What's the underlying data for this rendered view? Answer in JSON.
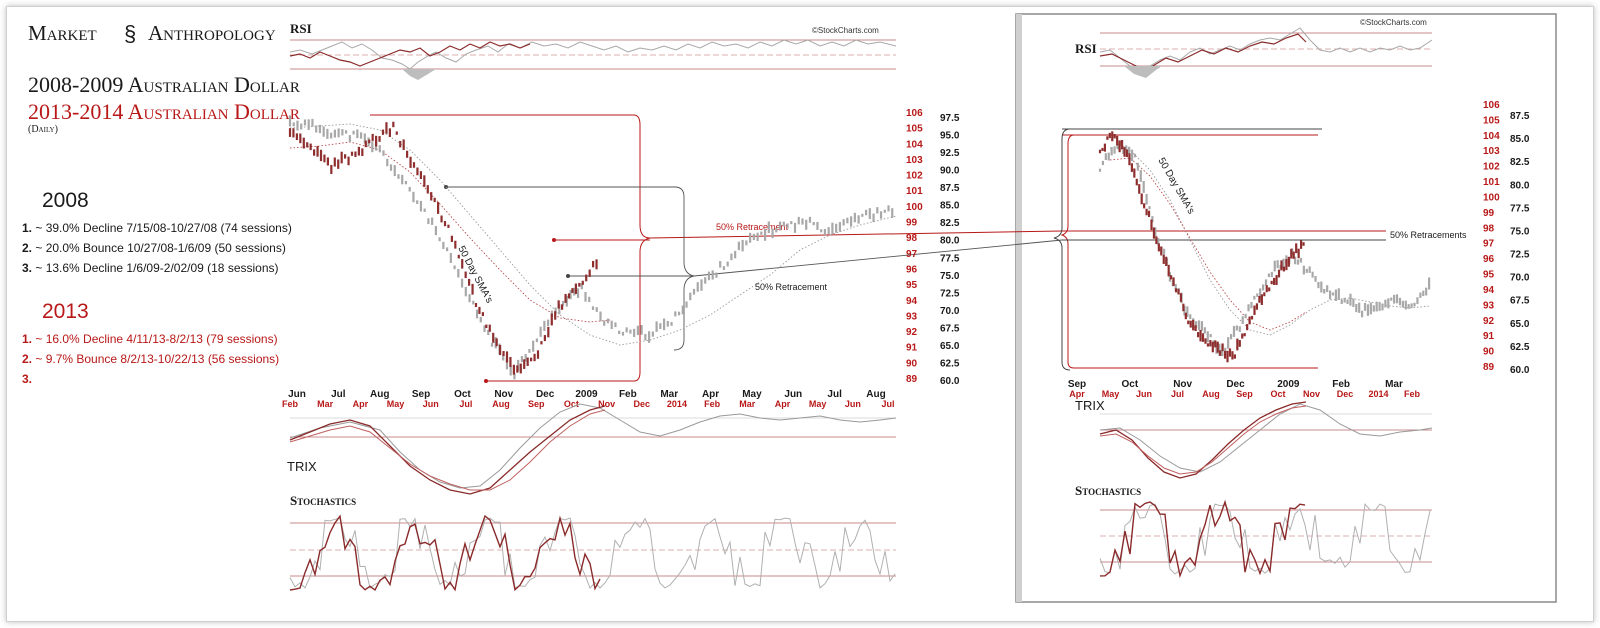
{
  "brand": {
    "word1": "Market",
    "word2": "Anthropology"
  },
  "titles": {
    "line1": "2008-2009 Australian Dollar",
    "line2": "2013-2014 Australian Dollar",
    "line3": "(Daily)"
  },
  "notes_2008": {
    "heading": "2008",
    "items": [
      {
        "num": "1.",
        "text": " ~ 39.0% Decline 7/15/08-10/27/08 (74 sessions)"
      },
      {
        "num": "2.",
        "text": " ~ 20.0% Bounce 10/27/08-1/6/09 (50 sessions)"
      },
      {
        "num": "3.",
        "text": " ~ 13.6% Decline 1/6/09-2/02/09 (18 sessions)"
      }
    ]
  },
  "notes_2013": {
    "heading": "2013",
    "items": [
      {
        "num": "1.",
        "text": " ~ 16.0% Decline 4/11/13-8/2/13 (79 sessions)"
      },
      {
        "num": "2.",
        "text": " ~   9.7% Bounce 8/2/13-10/22/13 (56 sessions)"
      },
      {
        "num": "3.",
        "text": ""
      }
    ]
  },
  "colors": {
    "red": "#b81818",
    "gray": "#9a9a9a",
    "black": "#1a1a1a",
    "darkred": "#7a2a2a"
  },
  "chart_data": [
    {
      "type": "line",
      "panel": "left-main",
      "watermark": "©StockCharts.com",
      "indicators": [
        "RSI",
        "TRIX",
        "Stochastics"
      ],
      "annotations": [
        "50 Day SMA's",
        "50% Retracement",
        "50% Retracement"
      ],
      "x_labels_2008": [
        "Jun",
        "Jul",
        "Aug",
        "Sep",
        "Oct",
        "Nov",
        "Dec",
        "2009",
        "Feb",
        "Mar",
        "Apr",
        "May",
        "Jun",
        "Jul",
        "Aug"
      ],
      "x_labels_2013": [
        "Feb",
        "Mar",
        "Apr",
        "May",
        "Jun",
        "Jul",
        "Aug",
        "Sep",
        "Oct",
        "Nov",
        "Dec",
        "2014",
        "Feb",
        "Mar",
        "Apr",
        "May",
        "Jun",
        "Jul"
      ],
      "y_ticks_2013": [
        "106",
        "105",
        "104",
        "103",
        "102",
        "101",
        "100",
        "99",
        "98",
        "97",
        "96",
        "95",
        "94",
        "93",
        "92",
        "91",
        "90",
        "89"
      ],
      "y_ticks_2008": [
        "97.5",
        "95.0",
        "92.5",
        "90.0",
        "87.5",
        "85.0",
        "82.5",
        "80.0",
        "77.5",
        "75.0",
        "72.5",
        "70.0",
        "67.5",
        "65.0",
        "62.5",
        "60.0"
      ],
      "series": [
        {
          "name": "2008-2009",
          "values": [
            97.2,
            96.6,
            95.6,
            95.2,
            93.2,
            88.7,
            84.4,
            78.3,
            71.7,
            65.6,
            61.1,
            66.1,
            70.6,
            73.3,
            68.3,
            66.7,
            66.7,
            68.3,
            72.8,
            75.6,
            78.9,
            81.1,
            82.2,
            82.8,
            81.7,
            83.3,
            83.9,
            84.4
          ]
        },
        {
          "name": "2013-2014",
          "values": [
            104.6,
            103.6,
            102.6,
            103.2,
            104.2,
            105.0,
            102.6,
            100.4,
            97.6,
            94.0,
            91.2,
            89.6,
            90.8,
            93.6,
            95.0,
            96.8
          ]
        }
      ]
    },
    {
      "type": "line",
      "panel": "right-main",
      "watermark": "©StockCharts.com",
      "indicators": [
        "RSI",
        "TRIX",
        "Stochastics"
      ],
      "annotations": [
        "50 Day SMA's",
        "50% Retracements"
      ],
      "x_labels_2008": [
        "Sep",
        "Oct",
        "Nov",
        "Dec",
        "2009",
        "Feb",
        "Mar"
      ],
      "x_labels_2013": [
        "Apr",
        "May",
        "Jun",
        "Jul",
        "Aug",
        "Sep",
        "Oct",
        "Nov",
        "Dec",
        "2014",
        "Feb"
      ],
      "y_ticks_2013": [
        "106",
        "105",
        "104",
        "103",
        "102",
        "101",
        "100",
        "99",
        "98",
        "97",
        "96",
        "95",
        "94",
        "93",
        "92",
        "91",
        "90",
        "89"
      ],
      "y_ticks_2008": [
        "87.5",
        "85.0",
        "82.5",
        "80.0",
        "77.5",
        "75.0",
        "72.5",
        "70.0",
        "67.5",
        "65.0",
        "62.5",
        "60.0"
      ],
      "series": [
        {
          "name": "2008-2009",
          "values": [
            81.6,
            84.4,
            83.2,
            76.0,
            70.4,
            66.0,
            64.0,
            62.0,
            64.8,
            68.0,
            70.8,
            72.4,
            70.4,
            68.4,
            67.6,
            66.4,
            66.8,
            67.6,
            66.8,
            69.6
          ]
        },
        {
          "name": "2013-2014",
          "values": [
            103.2,
            104.0,
            102.6,
            99.6,
            97.0,
            94.6,
            92.2,
            91.0,
            90.4,
            89.8,
            91.6,
            93.6,
            95.0,
            96.4,
            97.0
          ]
        }
      ]
    }
  ]
}
